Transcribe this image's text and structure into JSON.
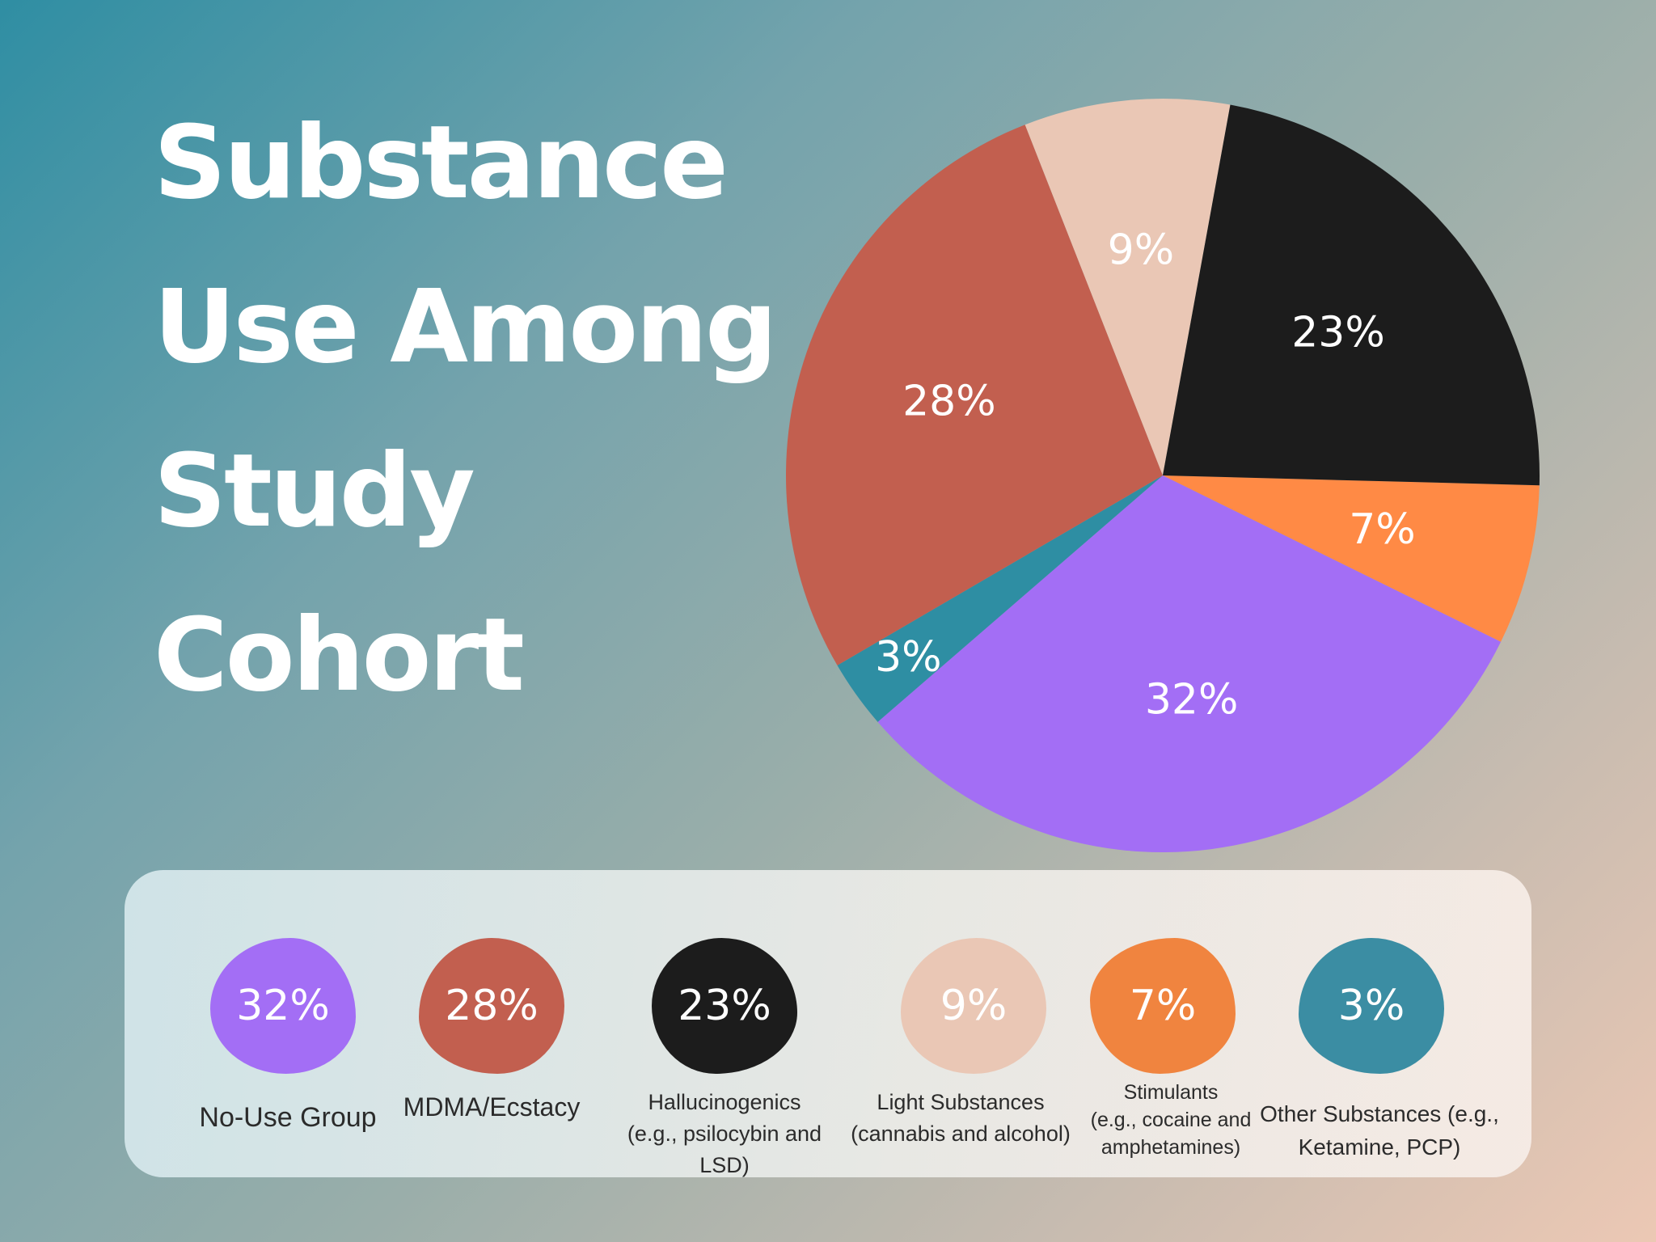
{
  "title_lines": [
    "Substance",
    "Use Among",
    "Study",
    "Cohort"
  ],
  "chart_data": {
    "type": "pie",
    "title": "Substance Use Among Study Cohort",
    "slices": [
      {
        "label": "Stimulants (e.g., cocaine and amphetamines)",
        "value": 7,
        "display": "7%",
        "color": "#ff8a45"
      },
      {
        "label": "No-Use Group",
        "value": 32,
        "display": "32%",
        "color": "#a36ef5"
      },
      {
        "label": "Other Substances (e.g., Ketamine, PCP)",
        "value": 3,
        "display": "3%",
        "color": "#2e8ea3"
      },
      {
        "label": "MDMA/Ecstacy",
        "value": 28,
        "display": "28%",
        "color": "#c25f4f"
      },
      {
        "label": "Light Substances (cannabis and alcohol)",
        "value": 9,
        "display": "9%",
        "color": "#eac7b5"
      },
      {
        "label": "Hallucinogenics (e.g., psilocybin and LSD)",
        "value": 23,
        "display": "23%",
        "color": "#1c1c1c"
      }
    ]
  },
  "legend": [
    {
      "percent": "32%",
      "lines": [
        "No-Use Group"
      ],
      "color": "#a36ef5"
    },
    {
      "percent": "28%",
      "lines": [
        "MDMA/Ecstacy"
      ],
      "color": "#c25f4f"
    },
    {
      "percent": "23%",
      "lines": [
        "Hallucinogenics",
        "(e.g., psilocybin and LSD)"
      ],
      "color": "#1c1c1c"
    },
    {
      "percent": "9%",
      "lines": [
        "Light Substances",
        "(cannabis and alcohol)"
      ],
      "color": "#eac7b5"
    },
    {
      "percent": "7%",
      "lines": [
        "Stimulants",
        "(e.g., cocaine and",
        "amphetamines)"
      ],
      "color": "#f0843f"
    },
    {
      "percent": "3%",
      "lines": [
        "Other Substances (e.g.,",
        "Ketamine, PCP)"
      ],
      "color": "#3b8da3"
    }
  ]
}
